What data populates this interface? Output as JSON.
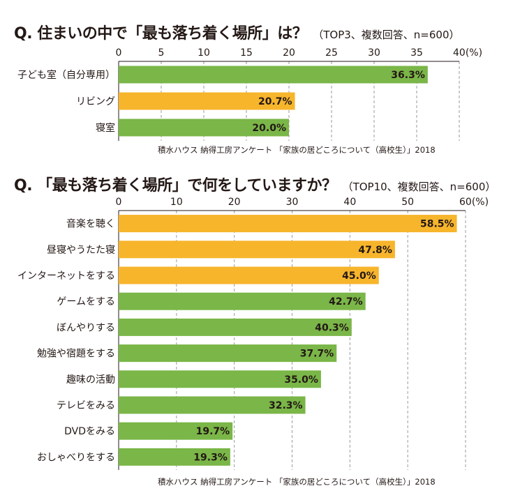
{
  "colors": {
    "green": "#7ab648",
    "orange": "#f7b52c",
    "axis": "#231815",
    "grid": "#9a9a9a"
  },
  "chart_data": [
    {
      "type": "bar",
      "orientation": "horizontal",
      "title": "Q. 住まいの中で「最も落ち着く場所」は？",
      "subtitle": "（TOP3、複数回答、n=600）",
      "unit": "(%)",
      "xlim": [
        0,
        40
      ],
      "ticks": [
        "0",
        "5",
        "10",
        "15",
        "20",
        "25",
        "30",
        "35",
        "40"
      ],
      "grid": "dashed vertical",
      "categories": [
        "子ども室（自分専用）",
        "リビング",
        "寝室"
      ],
      "values": [
        36.3,
        20.7,
        20.0
      ],
      "labels": [
        "36.3%",
        "20.7%",
        "20.0%"
      ],
      "bar_colors": [
        "green",
        "orange",
        "green"
      ],
      "source": "積水ハウス 納得工房アンケート 「家族の居どころについて（高校生）」2018"
    },
    {
      "type": "bar",
      "orientation": "horizontal",
      "title": "Q. 「最も落ち着く場所」で何をしていますか？",
      "subtitle": "（TOP10、複数回答、n=600）",
      "unit": "(%)",
      "xlim": [
        0,
        60
      ],
      "ticks": [
        "0",
        "10",
        "20",
        "30",
        "40",
        "50",
        "60"
      ],
      "grid": "dashed vertical",
      "categories": [
        "音楽を聴く",
        "昼寝やうたた寝",
        "インターネットをする",
        "ゲームをする",
        "ぼんやりする",
        "勉強や宿題をする",
        "趣味の活動",
        "テレビをみる",
        "DVDをみる",
        "おしゃべりをする"
      ],
      "values": [
        58.5,
        47.8,
        45.0,
        42.7,
        40.3,
        37.7,
        35.0,
        32.3,
        19.7,
        19.3
      ],
      "labels": [
        "58.5%",
        "47.8%",
        "45.0%",
        "42.7%",
        "40.3%",
        "37.7%",
        "35.0%",
        "32.3%",
        "19.7%",
        "19.3%"
      ],
      "bar_colors": [
        "orange",
        "orange",
        "orange",
        "green",
        "green",
        "green",
        "green",
        "green",
        "green",
        "green"
      ],
      "source": "積水ハウス 納得工房アンケート 「家族の居どころについて（高校生）」2018"
    }
  ]
}
